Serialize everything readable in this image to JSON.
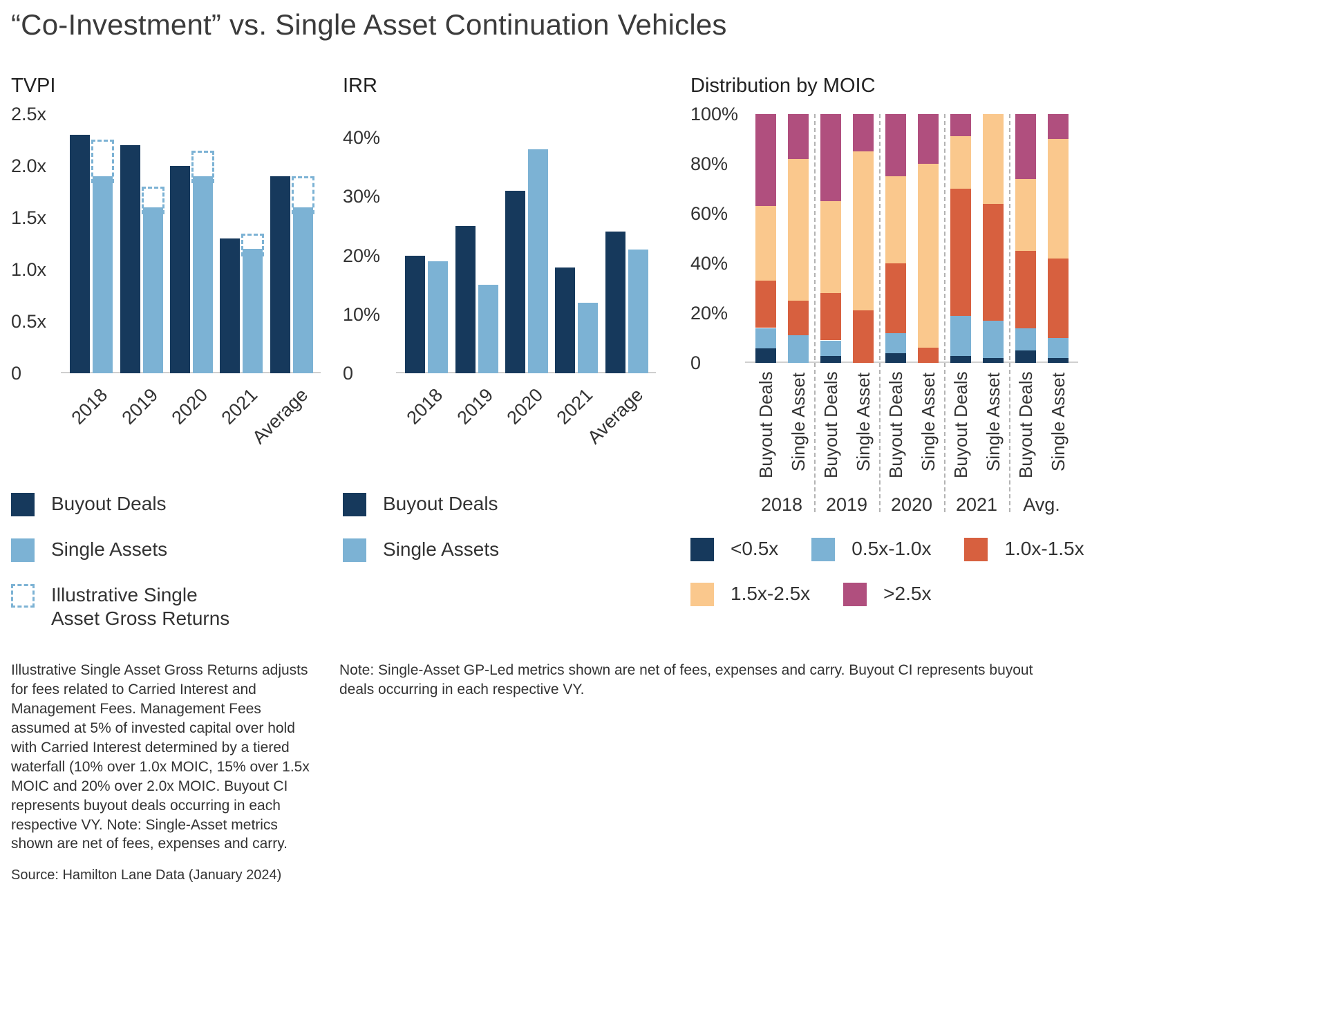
{
  "page": {
    "title": "“Co-Investment” vs. Single Asset Continuation Vehicles"
  },
  "colors": {
    "navy": "#16395c",
    "lightblue": "#7cb2d4",
    "red": "#d7603f",
    "peach": "#fac88d",
    "magenta": "#b04f7e",
    "axis": "#cfcfcf"
  },
  "chart_data": [
    {
      "id": "tvpi",
      "type": "bar",
      "title": "TVPI",
      "categories": [
        "2018",
        "2019",
        "2020",
        "2021",
        "Average"
      ],
      "series": [
        {
          "name": "Buyout Deals",
          "color": "navy",
          "values": [
            2.3,
            2.2,
            2.0,
            1.3,
            1.9
          ]
        },
        {
          "name": "Single Assets",
          "color": "lightblue",
          "values": [
            1.9,
            1.6,
            1.9,
            1.2,
            1.6
          ]
        },
        {
          "name": "Illustrative Single Asset Gross Returns",
          "style": "dashed",
          "color": "lightblue",
          "values": [
            2.25,
            1.8,
            2.15,
            1.35,
            1.9
          ]
        }
      ],
      "ylim": [
        0,
        2.5
      ],
      "yticks": [
        {
          "v": 0,
          "label": "0"
        },
        {
          "v": 0.5,
          "label": "0.5x"
        },
        {
          "v": 1.0,
          "label": "1.0x"
        },
        {
          "v": 1.5,
          "label": "1.5x"
        },
        {
          "v": 2.0,
          "label": "2.0x"
        },
        {
          "v": 2.5,
          "label": "2.5x"
        }
      ],
      "legend": [
        {
          "label": "Buyout Deals",
          "swatch": "navy"
        },
        {
          "label": "Single Assets",
          "swatch": "lightblue"
        },
        {
          "label": "Illustrative Single\nAsset Gross Returns",
          "swatch": "dashed"
        }
      ]
    },
    {
      "id": "irr",
      "type": "bar",
      "title": "IRR",
      "categories": [
        "2018",
        "2019",
        "2020",
        "2021",
        "Average"
      ],
      "series": [
        {
          "name": "Buyout Deals",
          "color": "navy",
          "values": [
            20,
            25,
            31,
            18,
            24
          ]
        },
        {
          "name": "Single Assets",
          "color": "lightblue",
          "values": [
            19,
            15,
            38,
            12,
            21
          ]
        }
      ],
      "ylim": [
        0,
        40
      ],
      "yticks": [
        {
          "v": 0,
          "label": "0"
        },
        {
          "v": 10,
          "label": "10%"
        },
        {
          "v": 20,
          "label": "20%"
        },
        {
          "v": 30,
          "label": "30%"
        },
        {
          "v": 40,
          "label": "40%"
        }
      ],
      "legend": [
        {
          "label": "Buyout Deals",
          "swatch": "navy"
        },
        {
          "label": "Single Assets",
          "swatch": "lightblue"
        }
      ]
    },
    {
      "id": "moic",
      "type": "stacked-bar",
      "title": "Distribution by MOIC",
      "segment_labels": [
        "<0.5x",
        "0.5x-1.0x",
        "1.0x-1.5x",
        "1.5x-2.5x",
        ">2.5x"
      ],
      "segment_colors": [
        "navy",
        "lightblue",
        "red",
        "peach",
        "magenta"
      ],
      "ylim": [
        0,
        100
      ],
      "yticks": [
        {
          "v": 0,
          "label": "0"
        },
        {
          "v": 20,
          "label": "20%"
        },
        {
          "v": 40,
          "label": "40%"
        },
        {
          "v": 60,
          "label": "60%"
        },
        {
          "v": 80,
          "label": "80%"
        },
        {
          "v": 100,
          "label": "100%"
        }
      ],
      "groups": [
        {
          "label": "2018",
          "bars": [
            {
              "label": "Buyout Deals",
              "values": [
                6,
                8,
                19,
                30,
                37
              ]
            },
            {
              "label": "Single Asset",
              "values": [
                0,
                11,
                14,
                57,
                18
              ]
            }
          ]
        },
        {
          "label": "2019",
          "bars": [
            {
              "label": "Buyout Deals",
              "values": [
                3,
                6,
                19,
                37,
                35
              ]
            },
            {
              "label": "Single Asset",
              "values": [
                0,
                0,
                21,
                64,
                15
              ]
            }
          ]
        },
        {
          "label": "2020",
          "bars": [
            {
              "label": "Buyout Deals",
              "values": [
                4,
                8,
                28,
                35,
                25
              ]
            },
            {
              "label": "Single Asset",
              "values": [
                0,
                0,
                6,
                74,
                20
              ]
            }
          ]
        },
        {
          "label": "2021",
          "bars": [
            {
              "label": "Buyout Deals",
              "values": [
                3,
                16,
                51,
                21,
                9
              ]
            },
            {
              "label": "Single Asset",
              "values": [
                2,
                15,
                47,
                36,
                0
              ]
            }
          ]
        },
        {
          "label": "Avg.",
          "bars": [
            {
              "label": "Buyout Deals",
              "values": [
                5,
                9,
                31,
                29,
                26
              ]
            },
            {
              "label": "Single Asset",
              "values": [
                2,
                8,
                32,
                48,
                10
              ]
            }
          ]
        }
      ],
      "legend": [
        {
          "label": "<0.5x",
          "swatch": "navy"
        },
        {
          "label": "0.5x-1.0x",
          "swatch": "lightblue"
        },
        {
          "label": "1.0x-1.5x",
          "swatch": "red"
        },
        {
          "label": "1.5x-2.5x",
          "swatch": "peach"
        },
        {
          "label": ">2.5x",
          "swatch": "magenta"
        }
      ]
    }
  ],
  "footnotes": {
    "left": "Illustrative Single Asset Gross Returns adjusts for fees related to Carried Interest and Management Fees. Management Fees assumed at 5% of invested capital over hold with Carried Interest determined by a tiered waterfall (10% over 1.0x MOIC, 15% over 1.5x MOIC and 20% over 2.0x MOIC. Buyout CI represents buyout deals occurring in each respective VY. Note: Single-Asset metrics shown are net of fees, expenses and carry.",
    "note": "Note: Single-Asset GP-Led metrics shown are net of fees, expenses and carry. Buyout CI represents buyout deals occurring in each respective VY.",
    "source": "Source: Hamilton Lane Data (January 2024)"
  }
}
